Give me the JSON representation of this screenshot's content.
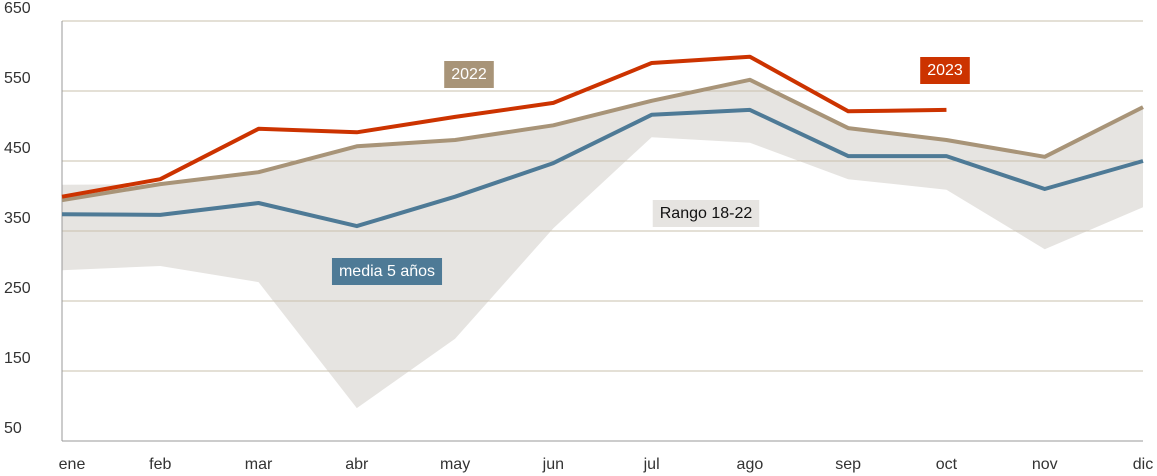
{
  "chart_data": {
    "type": "line",
    "categories": [
      "ene",
      "feb",
      "mar",
      "abr",
      "may",
      "jun",
      "jul",
      "ago",
      "sep",
      "oct",
      "nov",
      "dic"
    ],
    "series": [
      {
        "name": "2023",
        "color": "#cc3300",
        "values": [
          399,
          424,
          496,
          491,
          513,
          533,
          590,
          599,
          521,
          523,
          null,
          null
        ]
      },
      {
        "name": "2022",
        "color": "#a89478",
        "values": [
          394,
          417,
          434,
          471,
          480,
          501,
          536,
          566,
          497,
          480,
          456,
          527
        ]
      },
      {
        "name": "media 5 años",
        "color": "#4e7a96",
        "values": [
          374,
          373,
          390,
          357,
          399,
          447,
          516,
          523,
          457,
          457,
          410,
          450
        ]
      }
    ],
    "range": {
      "name": "Rango 18-22",
      "color": "#e6e4e1",
      "upper": [
        416,
        417,
        434,
        471,
        480,
        501,
        536,
        566,
        497,
        480,
        456,
        527
      ],
      "lower": [
        294,
        300,
        277,
        97,
        196,
        354,
        484,
        476,
        424,
        409,
        324,
        384
      ]
    },
    "ylim": [
      50,
      650
    ],
    "yticks": [
      50,
      150,
      250,
      350,
      450,
      550,
      650
    ],
    "grid": true
  }
}
